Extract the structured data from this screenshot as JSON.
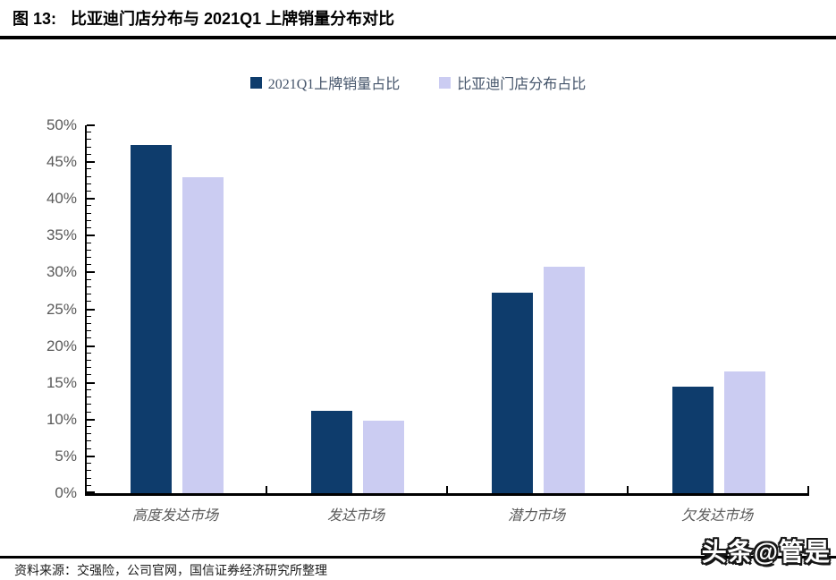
{
  "header": {
    "figure_label": "图 13:",
    "title": "比亚迪门店分布与 2021Q1 上牌销量分布对比"
  },
  "chart_data": {
    "type": "bar",
    "title": "图 13: 比亚迪门店分布与 2021Q1 上牌销量分布对比",
    "categories": [
      "高度发达市场",
      "发达市场",
      "潜力市场",
      "欠发达市场"
    ],
    "series": [
      {
        "name": "2021Q1上牌销量占比",
        "color": "#0e3c6c",
        "values": [
          47.3,
          11.2,
          27.3,
          14.5
        ]
      },
      {
        "name": "比亚迪门店分布占比",
        "color": "#cbccf2",
        "values": [
          43.0,
          9.8,
          30.8,
          16.6
        ]
      }
    ],
    "value_unit": "%",
    "ylim": [
      0,
      50
    ],
    "y_tick_labels": [
      "0%",
      "5%",
      "10%",
      "15%",
      "20%",
      "25%",
      "30%",
      "35%",
      "40%",
      "45%",
      "50%"
    ],
    "y_minor_tick_step_percent": 1,
    "grid": false,
    "legend_position": "top"
  },
  "footer": {
    "source": "资料来源：交强险，公司官网，国信证券经济研究所整理",
    "watermark": "头条@管是"
  },
  "colors": {
    "series1": "#0e3c6c",
    "series2": "#cbccf2",
    "axis": "#000000",
    "tick_label_text": "#595959",
    "legend_text": "#44546a"
  }
}
